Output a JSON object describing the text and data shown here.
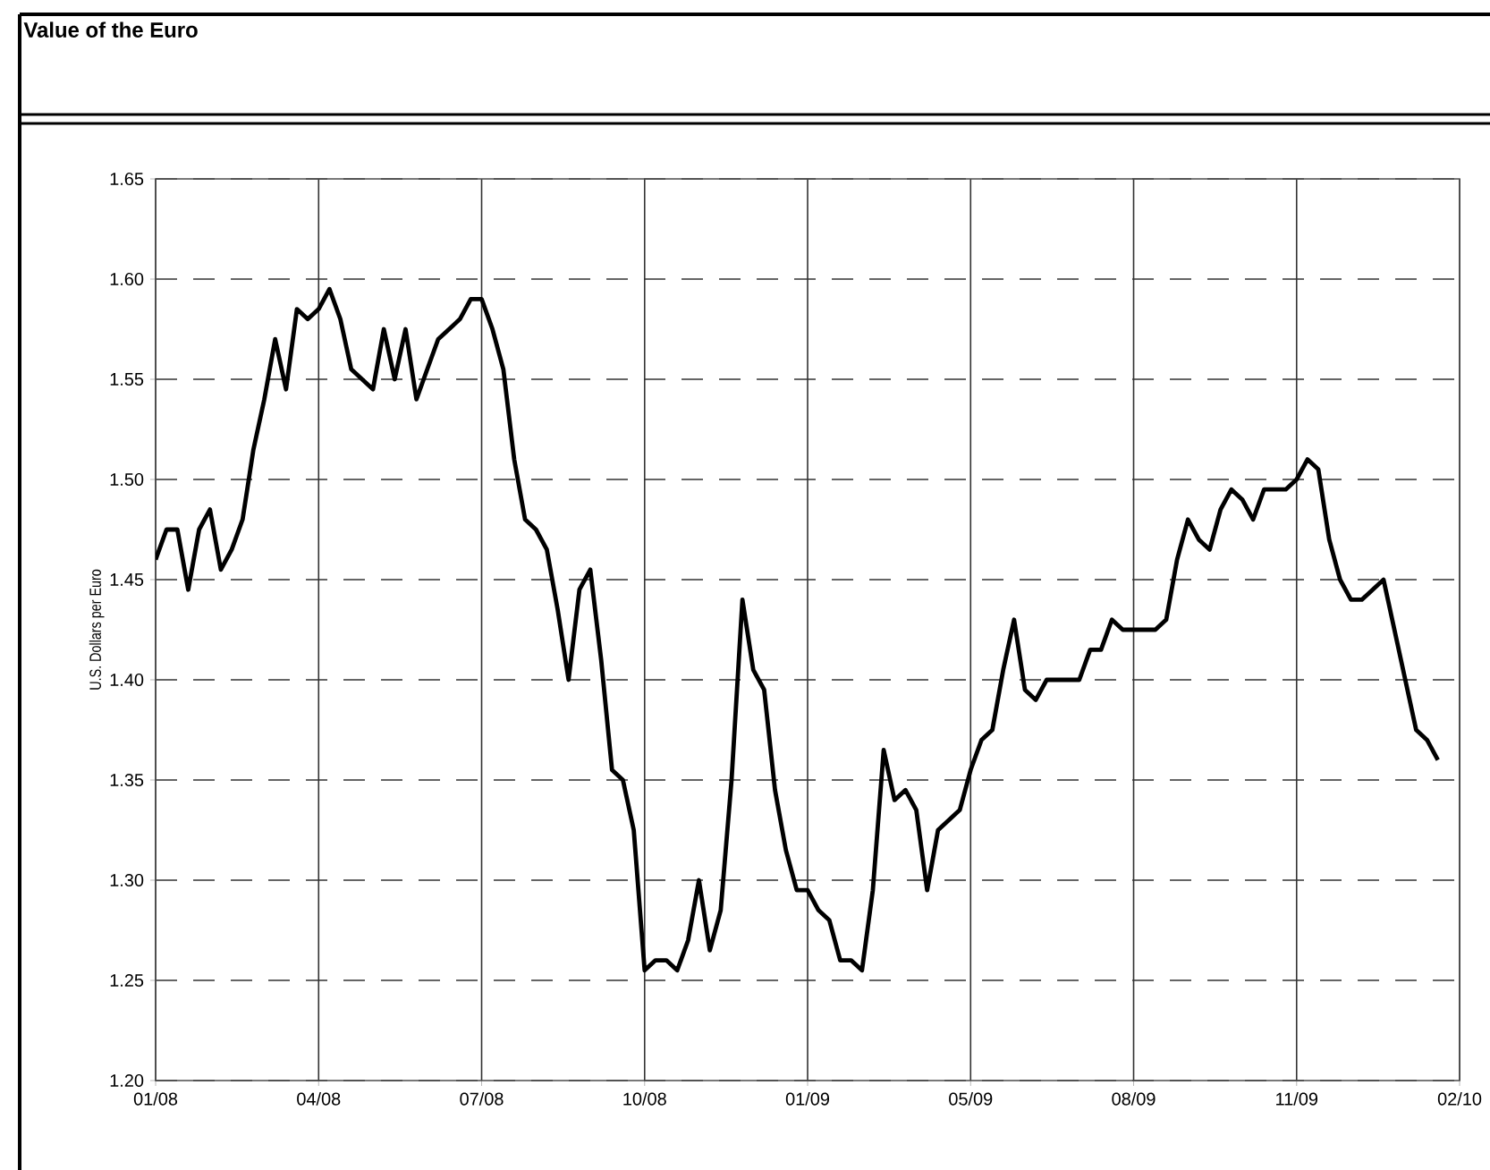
{
  "chart_data": {
    "type": "line",
    "title": "Value of the Euro",
    "ylabel": "U.S. Dollars per Euro",
    "categories": [
      "01/08",
      null,
      null,
      null,
      null,
      null,
      null,
      null,
      null,
      null,
      null,
      null,
      null,
      null,
      null,
      "04/08",
      null,
      null,
      null,
      null,
      null,
      null,
      null,
      null,
      null,
      null,
      null,
      null,
      null,
      null,
      "07/08",
      null,
      null,
      null,
      null,
      null,
      null,
      null,
      null,
      null,
      null,
      null,
      null,
      null,
      null,
      "10/08",
      null,
      null,
      null,
      null,
      null,
      null,
      null,
      null,
      null,
      null,
      null,
      null,
      null,
      null,
      "01/09",
      null,
      null,
      null,
      null,
      null,
      null,
      null,
      null,
      null,
      null,
      null,
      null,
      null,
      null,
      "05/09",
      null,
      null,
      null,
      null,
      null,
      null,
      null,
      null,
      null,
      null,
      null,
      null,
      null,
      null,
      "08/09",
      null,
      null,
      null,
      null,
      null,
      null,
      null,
      null,
      null,
      null,
      null,
      null,
      null,
      null,
      "11/09",
      null,
      null,
      null,
      null,
      null,
      null,
      null,
      null,
      null,
      null,
      null,
      null,
      null,
      null,
      "02/10"
    ],
    "ylim": [
      1.2,
      1.65
    ],
    "yticks": [
      {
        "value": 1.2,
        "label": "1.20"
      },
      {
        "value": 1.25,
        "label": "1.25"
      },
      {
        "value": 1.3,
        "label": "1.30"
      },
      {
        "value": 1.35,
        "label": "1.35"
      },
      {
        "value": 1.4,
        "label": "1.40"
      },
      {
        "value": 1.45,
        "label": "1.45"
      },
      {
        "value": 1.5,
        "label": "1.50"
      },
      {
        "value": 1.55,
        "label": "1.55"
      },
      {
        "value": 1.6,
        "label": "1.60"
      },
      {
        "value": 1.65,
        "label": "1.65"
      }
    ],
    "grid": true,
    "marker": "none",
    "line_style": "solid",
    "series": [
      {
        "color": "#000000",
        "values": [
          1.46,
          1.475,
          1.475,
          1.445,
          1.475,
          1.485,
          1.455,
          1.465,
          1.48,
          1.515,
          1.54,
          1.57,
          1.545,
          1.585,
          1.58,
          1.585,
          1.595,
          1.58,
          1.555,
          1.55,
          1.545,
          1.575,
          1.55,
          1.575,
          1.54,
          1.555,
          1.57,
          1.575,
          1.58,
          1.59,
          1.59,
          1.575,
          1.555,
          1.51,
          1.48,
          1.475,
          1.465,
          1.435,
          1.4,
          1.445,
          1.455,
          1.41,
          1.355,
          1.35,
          1.325,
          1.255,
          1.26,
          1.26,
          1.255,
          1.27,
          1.3,
          1.265,
          1.285,
          1.35,
          1.44,
          1.405,
          1.395,
          1.345,
          1.315,
          1.295,
          1.295,
          1.285,
          1.28,
          1.26,
          1.26,
          1.255,
          1.295,
          1.365,
          1.34,
          1.345,
          1.335,
          1.295,
          1.325,
          1.33,
          1.335,
          1.355,
          1.37,
          1.375,
          1.405,
          1.43,
          1.395,
          1.39,
          1.4,
          1.4,
          1.4,
          1.4,
          1.415,
          1.415,
          1.43,
          1.425,
          1.425,
          1.425,
          1.425,
          1.43,
          1.46,
          1.48,
          1.47,
          1.465,
          1.485,
          1.495,
          1.49,
          1.48,
          1.495,
          1.495,
          1.495,
          1.5,
          1.51,
          1.505,
          1.47,
          1.45,
          1.44,
          1.44,
          1.445,
          1.45,
          1.425,
          1.4,
          1.375,
          1.37,
          1.36,
          null,
          null
        ]
      }
    ]
  }
}
